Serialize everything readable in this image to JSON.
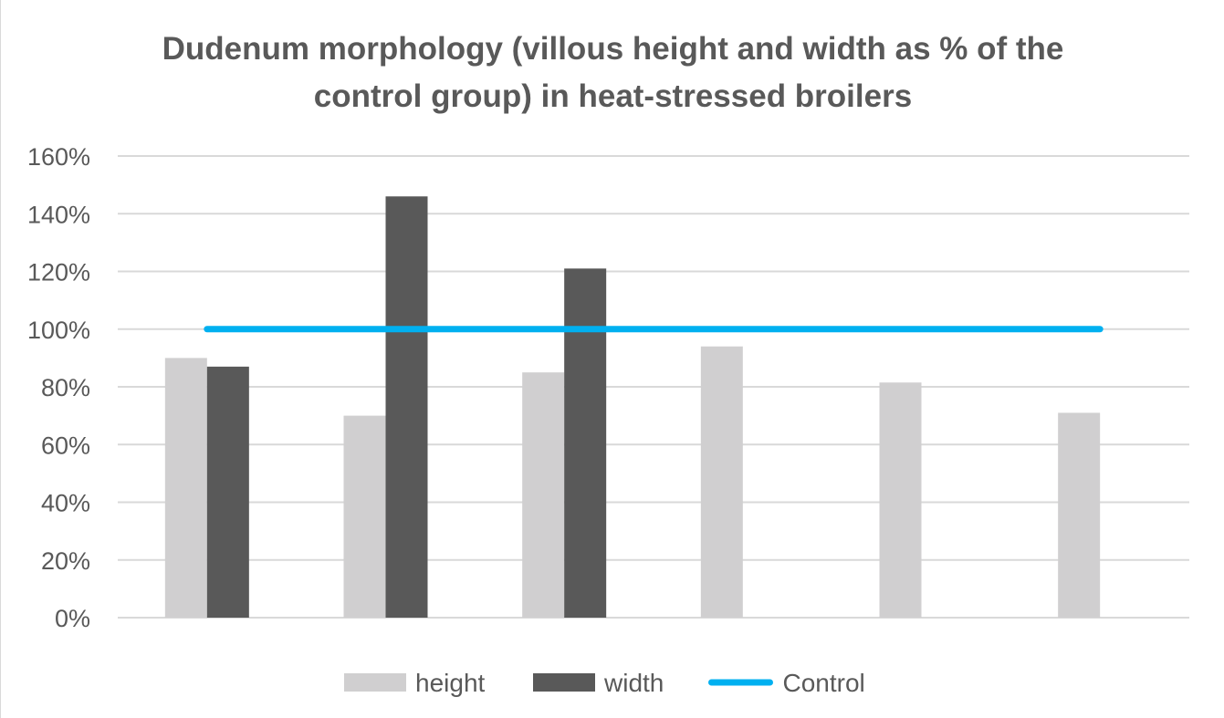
{
  "chart_data": {
    "type": "bar",
    "title_lines": [
      "Dudenum morphology (villous height and width as % of the",
      "control group) in heat-stressed broilers"
    ],
    "xlabel": "",
    "ylabel": "",
    "ylim": [
      0,
      1.6
    ],
    "yticks": [
      0,
      0.2,
      0.4,
      0.6,
      0.8,
      1.0,
      1.2,
      1.4,
      1.6
    ],
    "ytick_labels": [
      "0%",
      "20%",
      "40%",
      "60%",
      "80%",
      "100%",
      "120%",
      "140%",
      "160%"
    ],
    "categories": [
      "",
      "",
      "",
      "",
      "",
      ""
    ],
    "series": [
      {
        "name": "height",
        "type": "bar",
        "color": "#d0cfd0",
        "values": [
          0.9,
          0.7,
          0.85,
          0.94,
          0.815,
          0.71
        ]
      },
      {
        "name": "width",
        "type": "bar",
        "color": "#595959",
        "values": [
          0.87,
          1.46,
          1.21,
          null,
          null,
          null
        ]
      },
      {
        "name": "Control",
        "type": "line",
        "color": "#00b0f0",
        "values": [
          1.0,
          1.0,
          1.0,
          1.0,
          1.0,
          1.0
        ]
      }
    ],
    "grid": true,
    "legend_position": "bottom"
  }
}
